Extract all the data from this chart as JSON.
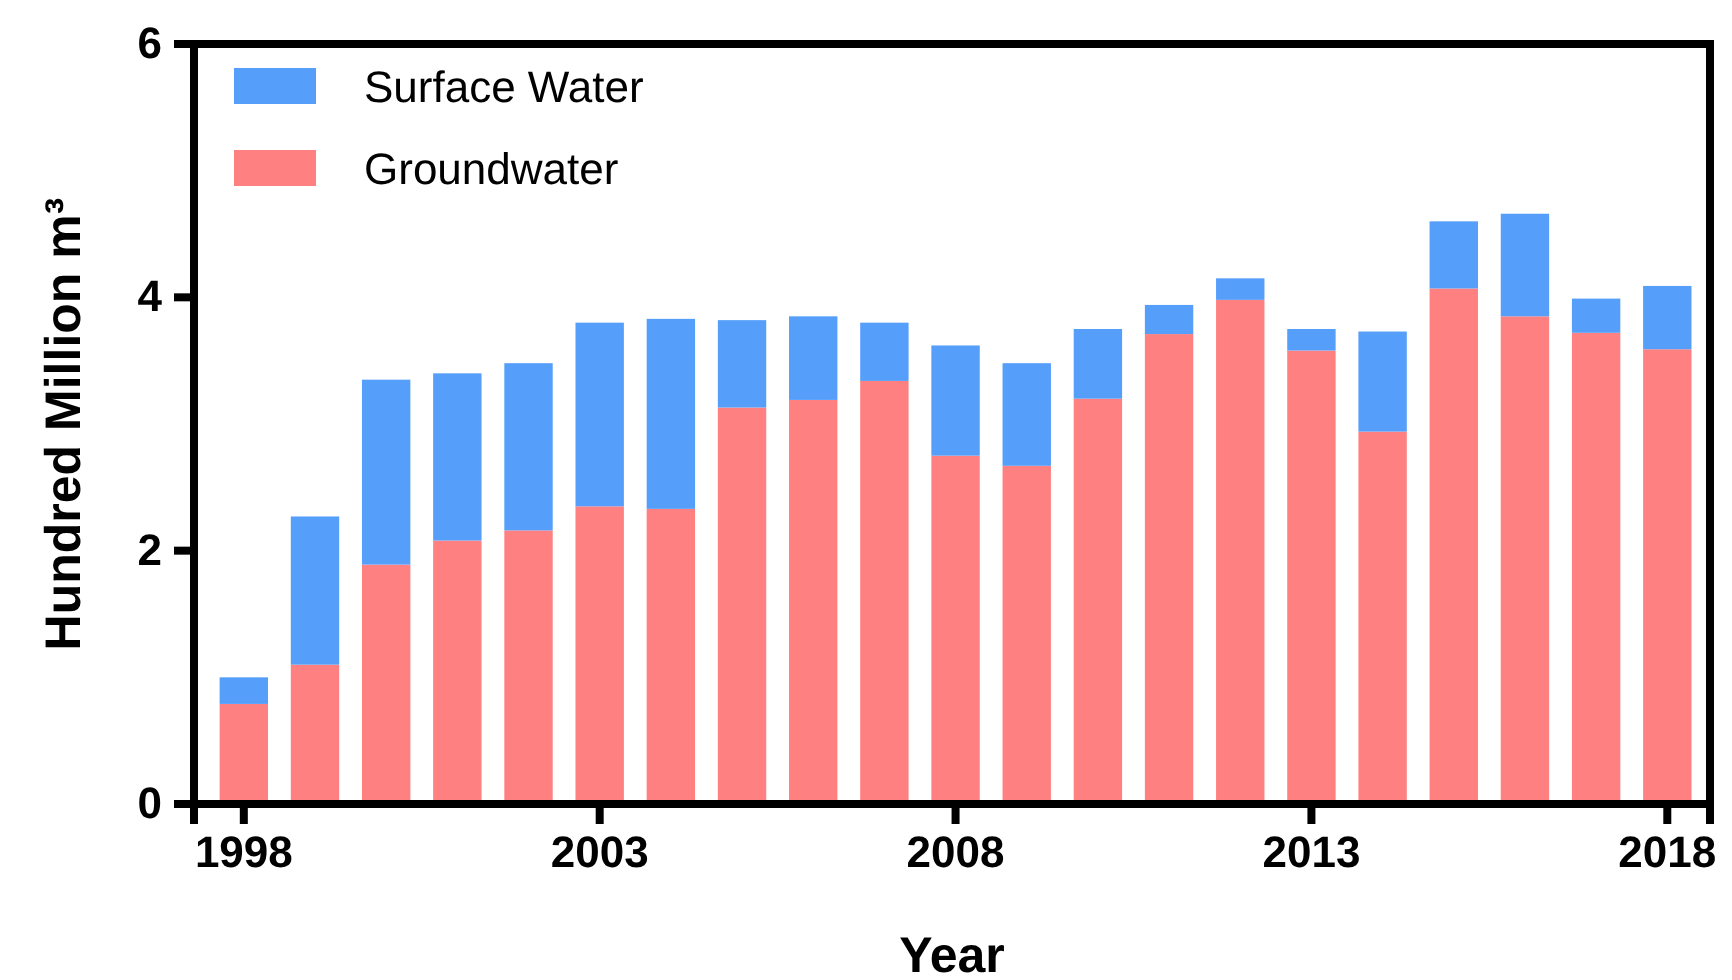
{
  "chart_data": {
    "type": "bar",
    "stacked": true,
    "xlabel": "Year",
    "ylabel": "Hundred Million m³",
    "x": [
      1998,
      1999,
      2000,
      2001,
      2002,
      2003,
      2004,
      2005,
      2006,
      2007,
      2008,
      2009,
      2010,
      2011,
      2012,
      2013,
      2014,
      2015,
      2016,
      2017,
      2018
    ],
    "xlim": [
      1997.3,
      2018.6
    ],
    "xticks": [
      1998,
      2003,
      2008,
      2013,
      2018
    ],
    "ylim": [
      0,
      6
    ],
    "yticks": [
      0,
      2,
      4,
      6
    ],
    "grid": false,
    "legend": "top left",
    "series": [
      {
        "name": "Groundwater",
        "color": "#ff8080",
        "values": [
          0.79,
          1.1,
          1.89,
          2.08,
          2.16,
          2.35,
          2.33,
          3.13,
          3.19,
          3.34,
          2.75,
          2.67,
          3.2,
          3.71,
          3.98,
          3.58,
          2.94,
          4.07,
          3.85,
          3.72,
          3.59
        ]
      },
      {
        "name": "Surface Water",
        "color": "#559ffb",
        "values": [
          0.21,
          1.17,
          1.46,
          1.32,
          1.32,
          1.45,
          1.5,
          0.69,
          0.66,
          0.46,
          0.87,
          0.81,
          0.55,
          0.23,
          0.17,
          0.17,
          0.79,
          0.53,
          0.81,
          0.27,
          0.5
        ]
      }
    ]
  }
}
